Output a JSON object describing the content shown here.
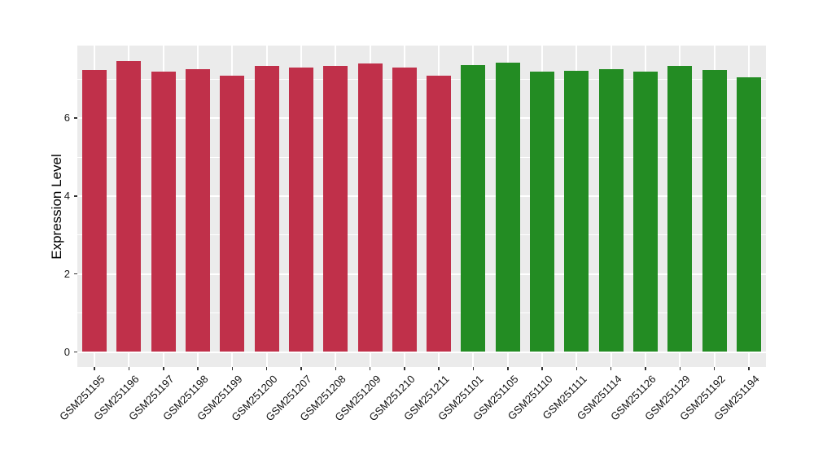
{
  "chart_data": {
    "type": "bar",
    "title": "",
    "xlabel": "",
    "ylabel": "Expression Level",
    "ylim": [
      -0.39,
      7.87
    ],
    "yticks": [
      0,
      2,
      4,
      6
    ],
    "ytick_labels": [
      "0",
      "2",
      "4",
      "6"
    ],
    "yticks_minor": [
      1,
      3,
      5,
      7
    ],
    "grid": true,
    "legend_position": "none",
    "panel_bg": "#EBEBEB",
    "grid_color": "#ffffff",
    "bar_group_colors": {
      "groupA": "#C0304A",
      "groupB": "#238C23"
    },
    "categories": [
      "GSM251195",
      "GSM251196",
      "GSM251197",
      "GSM251198",
      "GSM251199",
      "GSM251200",
      "GSM251207",
      "GSM251208",
      "GSM251209",
      "GSM251210",
      "GSM251211",
      "GSM251101",
      "GSM251105",
      "GSM251110",
      "GSM251111",
      "GSM251114",
      "GSM251126",
      "GSM251129",
      "GSM251192",
      "GSM251194"
    ],
    "values": [
      7.24,
      7.47,
      7.2,
      7.26,
      7.09,
      7.33,
      7.3,
      7.33,
      7.4,
      7.3,
      7.08,
      7.36,
      7.42,
      7.2,
      7.22,
      7.26,
      7.19,
      7.33,
      7.23,
      7.05
    ],
    "groups": [
      "groupA",
      "groupA",
      "groupA",
      "groupA",
      "groupA",
      "groupA",
      "groupA",
      "groupA",
      "groupA",
      "groupA",
      "groupA",
      "groupB",
      "groupB",
      "groupB",
      "groupB",
      "groupB",
      "groupB",
      "groupB",
      "groupB",
      "groupB"
    ]
  }
}
